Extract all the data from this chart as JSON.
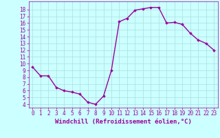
{
  "x": [
    0,
    1,
    2,
    3,
    4,
    5,
    6,
    7,
    8,
    9,
    10,
    11,
    12,
    13,
    14,
    15,
    16,
    17,
    18,
    19,
    20,
    21,
    22,
    23
  ],
  "y": [
    9.5,
    8.2,
    8.2,
    6.5,
    6.0,
    5.8,
    5.5,
    4.3,
    4.0,
    5.2,
    9.0,
    16.2,
    16.7,
    17.9,
    18.1,
    18.3,
    18.3,
    16.0,
    16.1,
    15.8,
    14.5,
    13.5,
    13.0,
    12.0
  ],
  "xlabel": "Windchill (Refroidissement éolien,°C)",
  "xlim": [
    -0.5,
    23.5
  ],
  "ylim": [
    3.5,
    19.2
  ],
  "yticks": [
    4,
    5,
    6,
    7,
    8,
    9,
    10,
    11,
    12,
    13,
    14,
    15,
    16,
    17,
    18
  ],
  "xticks": [
    0,
    1,
    2,
    3,
    4,
    5,
    6,
    7,
    8,
    9,
    10,
    11,
    12,
    13,
    14,
    15,
    16,
    17,
    18,
    19,
    20,
    21,
    22,
    23
  ],
  "line_color": "#990099",
  "marker": "D",
  "marker_size": 1.8,
  "line_width": 1.0,
  "bg_color": "#ccffff",
  "grid_color": "#aadddd",
  "tick_color": "#990099",
  "label_color": "#990099",
  "xlabel_fontsize": 6.5,
  "tick_fontsize": 5.5
}
